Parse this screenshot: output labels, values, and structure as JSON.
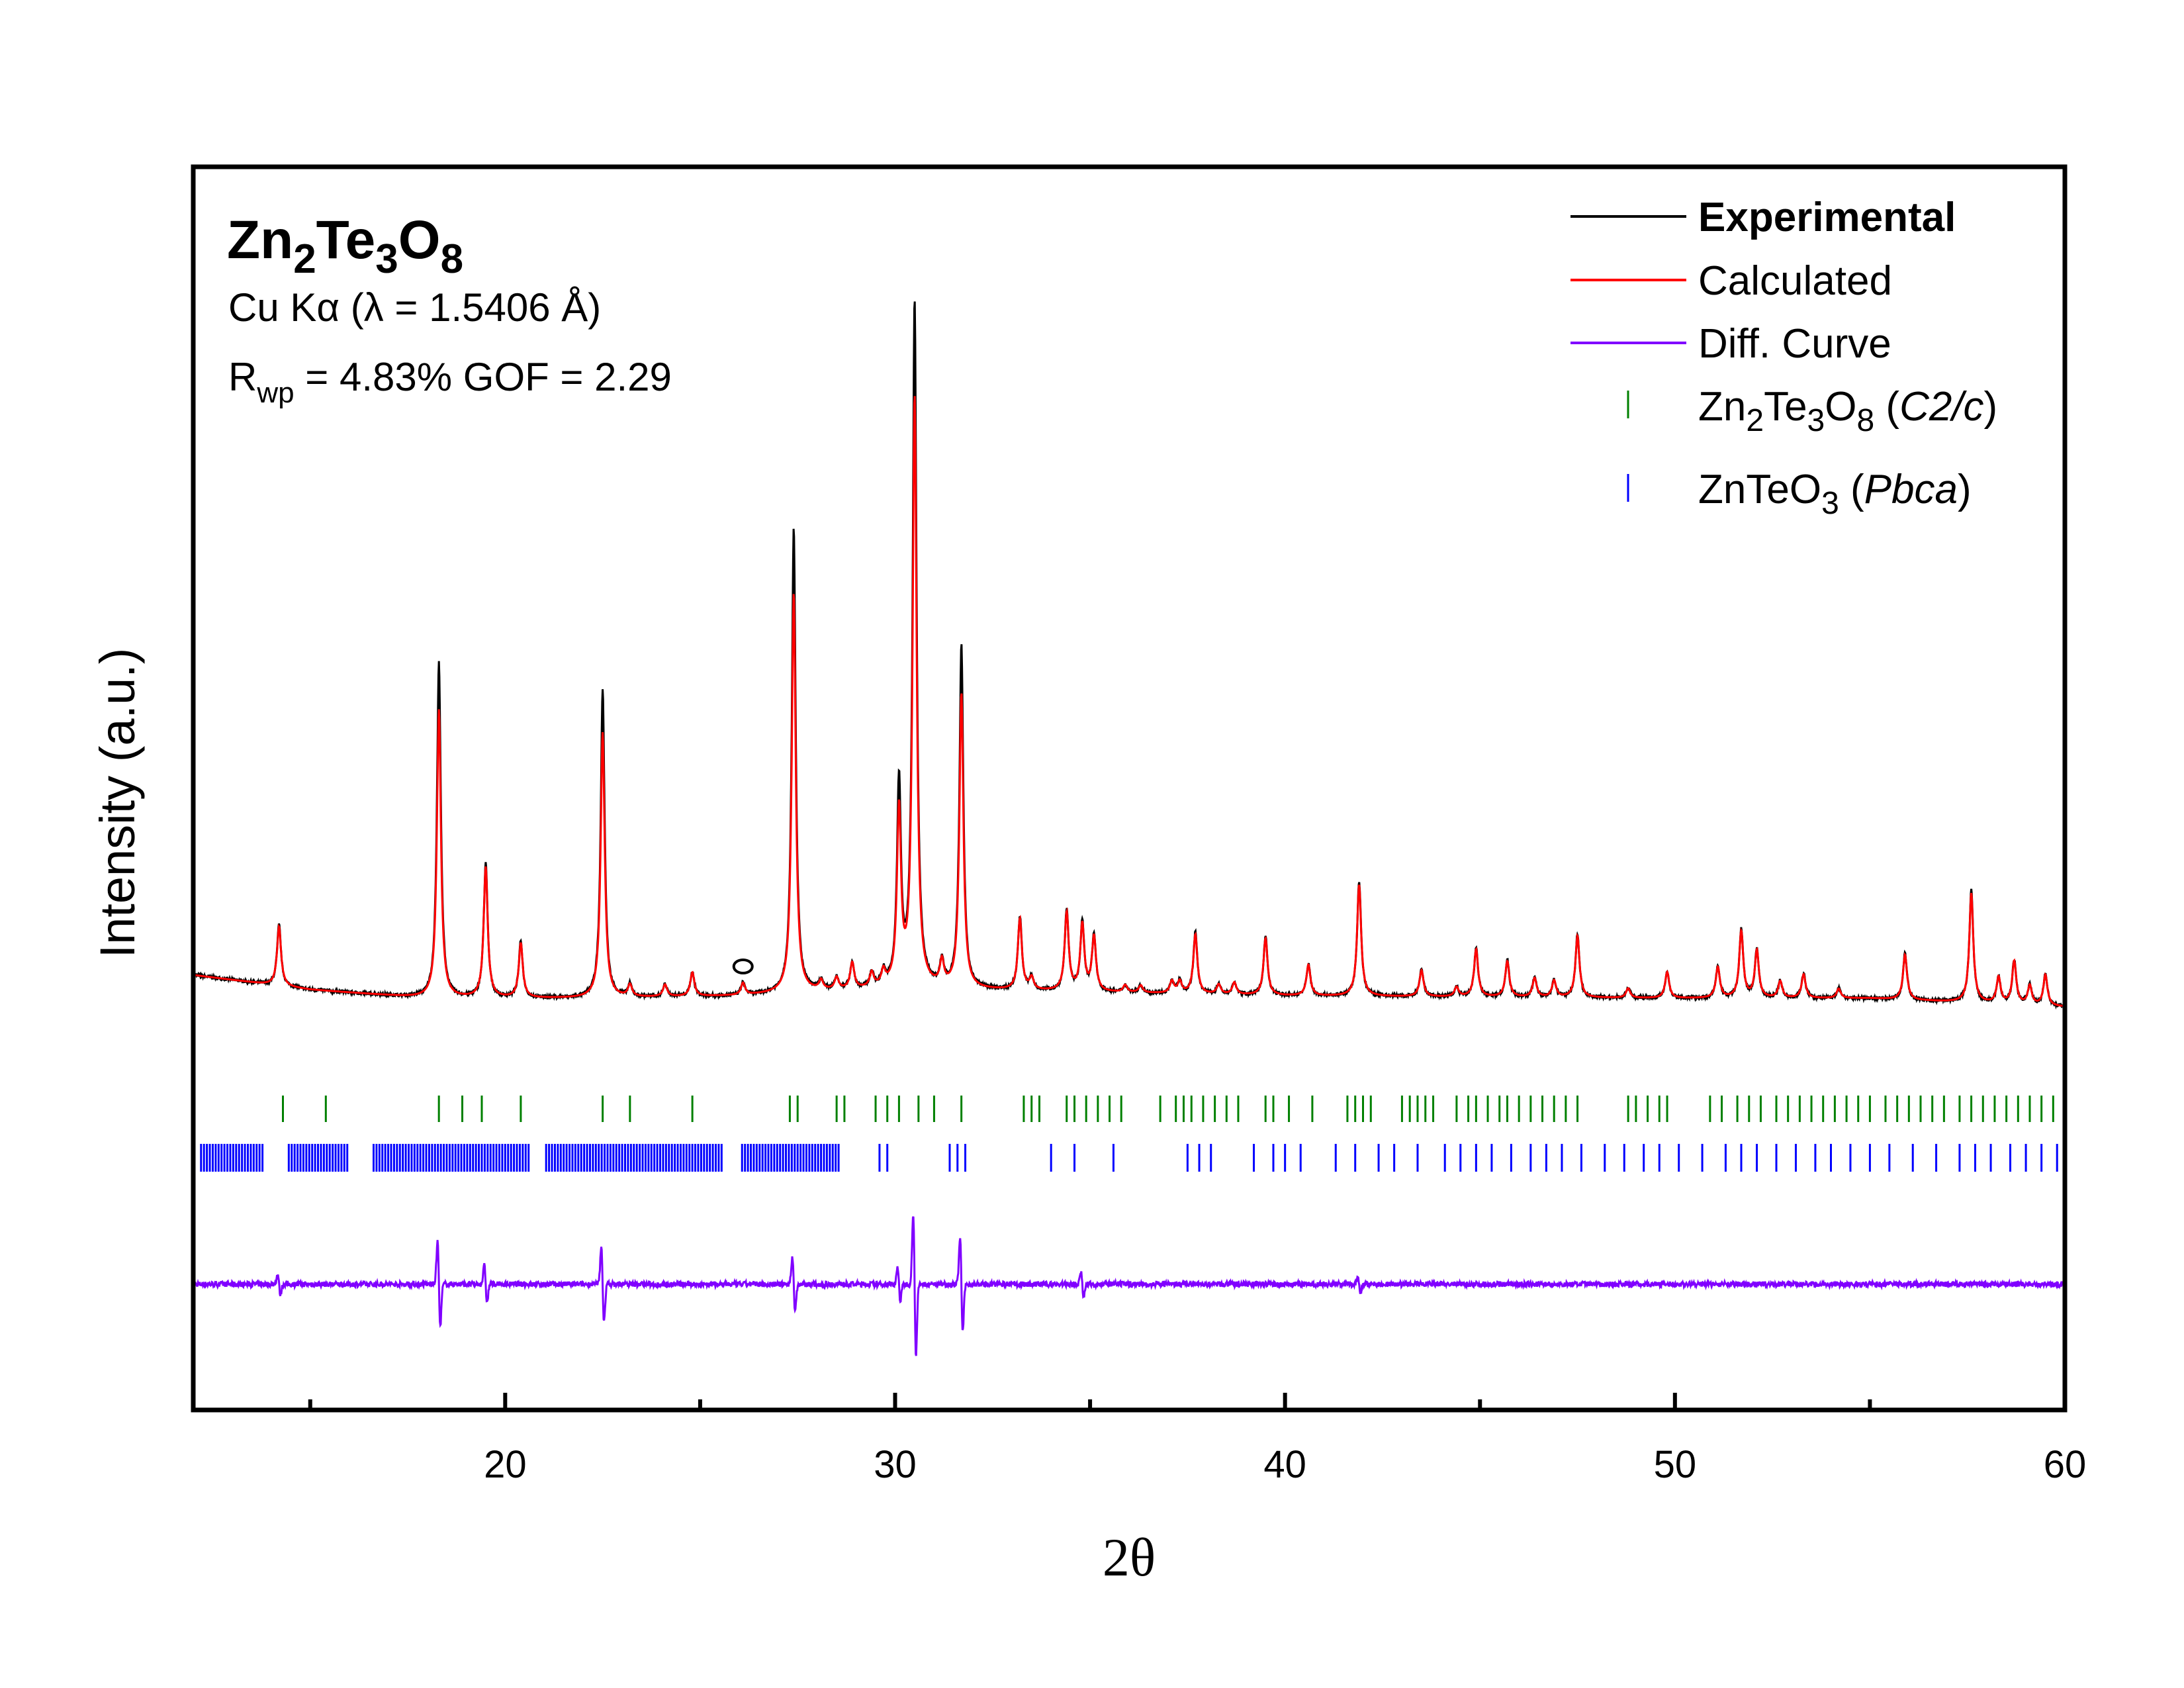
{
  "chart_data": {
    "type": "line",
    "xlabel": "2θ",
    "ylabel": "Intensity (a.u.)",
    "xlim": [
      12,
      60
    ],
    "x_ticks": [
      "20",
      "30",
      "40",
      "50",
      "60"
    ],
    "x_tick_values": [
      20,
      30,
      40,
      50,
      60
    ],
    "x_minor_tick_values": [
      15,
      25,
      35,
      45,
      55
    ],
    "y_ticks_shown": false,
    "annotations": {
      "formula": {
        "base1": "Zn",
        "sub1": "2",
        "base2": "Te",
        "sub2": "3",
        "base3": "O",
        "sub3": "8"
      },
      "radiation": "Cu Kα (λ = 1.5406 Å)",
      "rwp_symbol": "R",
      "rwp_sub": "wp",
      "rwp_rest": " = 4.83%  GOF = 2.29",
      "impurity_marker": "o",
      "impurity_marker_x": 26.1
    },
    "legend": {
      "position": "top-right",
      "entries": [
        {
          "label": "Experimental",
          "bold": true
        },
        {
          "label": "Calculated"
        },
        {
          "label": "Diff. Curve"
        },
        {
          "label_parts": [
            "Zn",
            "2",
            "Te",
            "3",
            "O",
            "8",
            " (",
            "C2/c",
            ")"
          ]
        },
        {
          "label_parts": [
            "ZnTeO",
            "3",
            " (",
            "Pbca",
            ")"
          ]
        }
      ]
    },
    "colors": {
      "experimental": "#000000",
      "calculated": "#ff0000",
      "difference": "#8000ff",
      "phase1_ticks": "#008000",
      "phase2_ticks": "#0000ff"
    },
    "background": {
      "x": [
        12,
        15,
        18,
        22,
        26,
        30,
        35,
        40,
        45,
        50,
        55,
        60
      ],
      "y": [
        1.0,
        0.4,
        0.05,
        0.05,
        0.15,
        0.45,
        0.3,
        0.15,
        0.1,
        0.05,
        0.05,
        -0.3
      ]
    },
    "peaks": {
      "x": [
        14.2,
        18.3,
        19.5,
        20.4,
        22.5,
        23.2,
        24.1,
        24.8,
        26.1,
        27.4,
        28.1,
        28.5,
        28.9,
        29.4,
        29.7,
        30.1,
        30.5,
        31.2,
        31.7,
        33.2,
        33.5,
        34.4,
        34.8,
        35.1,
        35.9,
        36.3,
        37.1,
        37.3,
        37.7,
        38.3,
        38.7,
        39.5,
        40.6,
        41.9,
        43.5,
        44.4,
        44.9,
        45.7,
        46.4,
        46.9,
        47.5,
        48.8,
        49.8,
        51.1,
        51.7,
        52.1,
        52.7,
        53.3,
        54.2,
        55.9,
        57.6,
        58.3,
        58.7,
        59.1,
        59.5
      ],
      "h": [
        2.5,
        13.7,
        5.5,
        2.3,
        12.6,
        0.5,
        0.5,
        1.0,
        0.5,
        19.0,
        0.4,
        0.5,
        1.1,
        0.6,
        0.6,
        8.3,
        28.0,
        1.0,
        14.0,
        3.0,
        0.5,
        3.3,
        2.8,
        2.3,
        0.3,
        0.3,
        0.5,
        0.5,
        2.5,
        0.4,
        0.5,
        2.4,
        1.3,
        4.7,
        1.1,
        0.4,
        2.0,
        1.5,
        0.8,
        0.7,
        2.6,
        0.4,
        1.1,
        1.3,
        2.8,
        2.0,
        0.7,
        1.0,
        0.4,
        1.9,
        4.6,
        1.1,
        1.8,
        0.8,
        1.3
      ]
    },
    "diff_extremes": {
      "x": [
        14.2,
        18.3,
        19.5,
        22.5,
        27.4,
        30.1,
        30.5,
        31.7,
        34.8,
        41.9
      ],
      "amp": [
        0.6,
        2.5,
        1.1,
        2.2,
        1.6,
        1.0,
        4.2,
        2.8,
        0.7,
        0.5
      ]
    },
    "phase1_reflections": [
      14.3,
      15.4,
      18.3,
      18.9,
      19.4,
      20.4,
      22.5,
      23.2,
      24.8,
      27.3,
      27.5,
      28.5,
      28.7,
      29.5,
      29.8,
      30.1,
      30.6,
      31.0,
      31.7,
      33.3,
      33.5,
      33.7,
      34.4,
      34.6,
      34.9,
      35.2,
      35.5,
      35.8,
      36.8,
      37.2,
      37.4,
      37.6,
      37.9,
      38.2,
      38.5,
      38.8,
      39.5,
      39.7,
      40.1,
      40.7,
      41.6,
      41.8,
      42.0,
      42.2,
      43.0,
      43.2,
      43.4,
      43.6,
      43.8,
      44.4,
      44.7,
      44.9,
      45.2,
      45.5,
      45.7,
      46.0,
      46.3,
      46.6,
      46.9,
      47.2,
      47.5,
      48.8,
      49.0,
      49.3,
      49.6,
      49.8,
      50.9,
      51.2,
      51.6,
      51.9,
      52.2,
      52.6,
      52.9,
      53.2,
      53.5,
      53.8,
      54.1,
      54.4,
      54.7,
      55.0,
      55.4,
      55.7,
      56.0,
      56.3,
      56.6,
      56.9,
      57.3,
      57.6,
      57.9,
      58.2,
      58.5,
      58.8,
      59.1,
      59.4,
      59.7
    ],
    "phase2_reflections": {
      "dense_range": [
        12.2,
        28.6
      ],
      "dense_gaps": [
        [
          13.8,
          14.4
        ],
        [
          16.0,
          16.6
        ],
        [
          20.6,
          21.0
        ],
        [
          25.6,
          26.0
        ]
      ],
      "x": [
        29.6,
        29.8,
        31.4,
        31.6,
        31.8,
        34.0,
        34.6,
        35.6,
        37.5,
        37.8,
        38.1,
        39.2,
        39.7,
        40.0,
        40.4,
        41.3,
        41.8,
        42.4,
        42.8,
        43.4,
        44.1,
        44.5,
        44.9,
        45.3,
        45.8,
        46.3,
        46.7,
        47.1,
        47.6,
        48.2,
        48.7,
        49.2,
        49.6,
        50.1,
        50.7,
        51.3,
        51.7,
        52.1,
        52.6,
        53.1,
        53.6,
        54.0,
        54.5,
        55.0,
        55.5,
        56.1,
        56.7,
        57.3,
        57.7,
        58.1,
        58.6,
        59.0,
        59.4,
        59.8
      ]
    }
  }
}
